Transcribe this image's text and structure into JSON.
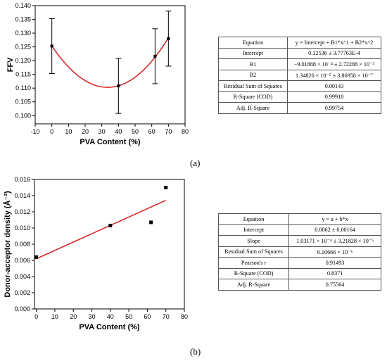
{
  "chart_data": [
    {
      "type": "scatter",
      "panel_label": "(a)",
      "ylabel": "FFV",
      "xlabel": "PVA Content (%)",
      "xlim": [
        -10,
        80
      ],
      "ylim": [
        0.097,
        0.14
      ],
      "xticks": [
        "-10",
        "0",
        "10",
        "20",
        "30",
        "40",
        "50",
        "60",
        "70",
        "80"
      ],
      "yticks": [
        "0.100",
        "0.105",
        "0.110",
        "0.115",
        "0.120",
        "0.125",
        "0.130",
        "0.135",
        "0.140"
      ],
      "points": [
        {
          "x": 0,
          "y": 0.1253,
          "err": 0.01
        },
        {
          "x": 40,
          "y": 0.1108,
          "err": 0.01
        },
        {
          "x": 62,
          "y": 0.1216,
          "err": 0.01
        },
        {
          "x": 70,
          "y": 0.128,
          "err": 0.01
        }
      ],
      "fit": {
        "type": "quadratic",
        "intercept": 0.12536,
        "b1": -0.000901888,
        "b2": 1.34826e-05,
        "color": "#d42020"
      },
      "fit_table": [
        [
          "Equation",
          "y = Intercept + B1*x^1 + B2*x^2"
        ],
        [
          "Intercept",
          "0.12536 ± 3.77763E-4"
        ],
        [
          "B1",
          "−9.01888 × 10⁻⁴ ± 2.72288 × 10⁻⁵"
        ],
        [
          "B2",
          "1.34826 × 10⁻⁵ ± 3.86958 × 10⁻⁷"
        ],
        [
          "Residual Sum of Squares",
          "0.00143"
        ],
        [
          "R-Square (COD)",
          "0.99918"
        ],
        [
          "Adj. R-Square",
          "0.99754"
        ]
      ]
    },
    {
      "type": "scatter",
      "panel_label": "(b)",
      "ylabel": "Donor-acceptor density (Å⁻³)",
      "xlabel": "PVA Content (%)",
      "xlim": [
        -1,
        80
      ],
      "ylim": [
        0.0,
        0.016
      ],
      "xticks": [
        "0",
        "10",
        "20",
        "30",
        "40",
        "50",
        "60",
        "70",
        "80"
      ],
      "yticks": [
        "0.000",
        "0.002",
        "0.004",
        "0.006",
        "0.008",
        "0.010",
        "0.012",
        "0.014",
        "0.016"
      ],
      "points": [
        {
          "x": 0,
          "y": 0.0064
        },
        {
          "x": 40,
          "y": 0.0103
        },
        {
          "x": 62,
          "y": 0.0107
        },
        {
          "x": 70,
          "y": 0.015
        }
      ],
      "fit": {
        "type": "linear",
        "intercept": 0.0062,
        "slope": 0.000103171,
        "x_range": [
          0,
          70
        ],
        "color": "#d42020"
      },
      "fit_table": [
        [
          "Equation",
          "y = a + b*x"
        ],
        [
          "Intercept",
          "0.0062 ± 0.00164"
        ],
        [
          "Slope",
          "1.03171 × 10⁻⁴ ± 3.21828 × 10⁻⁵"
        ],
        [
          "Residual Sum of Squares",
          "6.10666 × 10⁻⁶"
        ],
        [
          "Pearson's r",
          "0.91493"
        ],
        [
          "R-Square (COD)",
          "0.8371"
        ],
        [
          "Adj. R-Square",
          "0.75564"
        ]
      ]
    }
  ]
}
